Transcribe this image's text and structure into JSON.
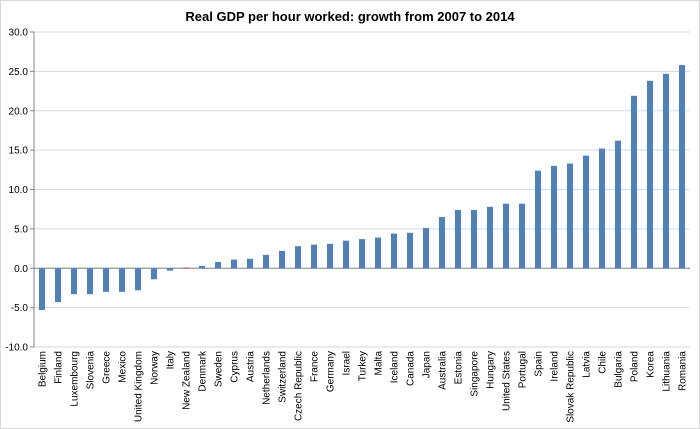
{
  "chart_data": {
    "type": "bar",
    "title": "Real GDP per hour worked: growth from 2007 to 2014",
    "xlabel": "",
    "ylabel": "",
    "ylim": [
      -10,
      30
    ],
    "yticks": [
      "-10.0",
      "-5.0",
      "0.0",
      "5.0",
      "10.0",
      "15.0",
      "20.0",
      "25.0",
      "30.0"
    ],
    "grid": "horizontal",
    "legend": "none",
    "bar_color": "#4f81bd",
    "highlight_color": "#c0504d",
    "highlight_category": "New Zealand",
    "categories": [
      "Belgium",
      "Finland",
      "Luxembourg",
      "Slovenia",
      "Greece",
      "Mexico",
      "United Kingdom",
      "Norway",
      "Italy",
      "New Zealand",
      "Denmark",
      "Sweden",
      "Cyprus",
      "Austria",
      "Netherlands",
      "Switzerland",
      "Czech Republic",
      "France",
      "Germany",
      "Israel",
      "Turkey",
      "Malta",
      "Iceland",
      "Canada",
      "Japan",
      "Australia",
      "Estonia",
      "Singapore",
      "Hungary",
      "United States",
      "Portugal",
      "Spain",
      "Ireland",
      "Slovak Republic",
      "Latvia",
      "Chile",
      "Bulgaria",
      "Poland",
      "Korea",
      "Lithuania",
      "Romania"
    ],
    "values": [
      -5.3,
      -4.3,
      -3.3,
      -3.3,
      -3.0,
      -3.0,
      -2.8,
      -1.4,
      -0.3,
      0.1,
      0.3,
      0.8,
      1.1,
      1.2,
      1.7,
      2.2,
      2.8,
      3.0,
      3.1,
      3.5,
      3.7,
      3.9,
      4.4,
      4.5,
      5.1,
      6.5,
      7.4,
      7.4,
      7.8,
      8.2,
      8.2,
      12.4,
      13.0,
      13.3,
      14.3,
      15.2,
      16.2,
      21.9,
      23.8,
      24.7,
      25.8
    ]
  }
}
